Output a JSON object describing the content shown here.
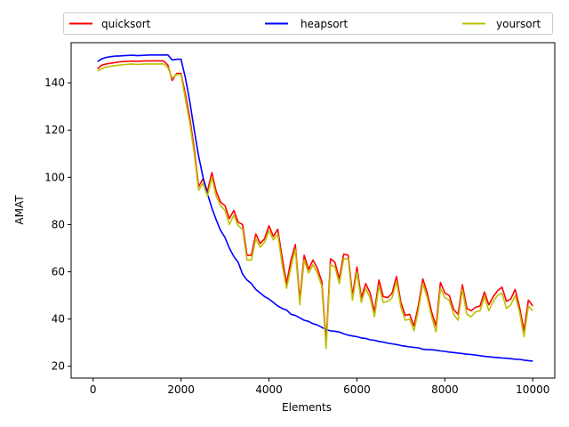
{
  "chart_data": {
    "type": "line",
    "title": "",
    "xlabel": "Elements",
    "ylabel": "AMAT",
    "xlim": [
      -500,
      10500
    ],
    "ylim": [
      15,
      157
    ],
    "xticks": [
      0,
      2000,
      4000,
      6000,
      8000,
      10000
    ],
    "yticks": [
      20,
      40,
      60,
      80,
      100,
      120,
      140
    ],
    "legend_position": "top",
    "legend_columns": 3,
    "grid": false,
    "series": [
      {
        "name": "quicksort",
        "color": "#ff0000",
        "points": [
          [
            100,
            146
          ],
          [
            200,
            147.5
          ],
          [
            300,
            148
          ],
          [
            400,
            148.3
          ],
          [
            500,
            148.6
          ],
          [
            600,
            148.9
          ],
          [
            700,
            149
          ],
          [
            800,
            149.1
          ],
          [
            900,
            149.2
          ],
          [
            1000,
            149.1
          ],
          [
            1100,
            149.2
          ],
          [
            1200,
            149.3
          ],
          [
            1300,
            149.3
          ],
          [
            1400,
            149.3
          ],
          [
            1500,
            149.3
          ],
          [
            1600,
            149.3
          ],
          [
            1700,
            147.5
          ],
          [
            1800,
            141
          ],
          [
            1900,
            144
          ],
          [
            2000,
            144
          ],
          [
            2100,
            135
          ],
          [
            2200,
            125
          ],
          [
            2300,
            112
          ],
          [
            2400,
            96
          ],
          [
            2500,
            99.5
          ],
          [
            2600,
            94
          ],
          [
            2700,
            102
          ],
          [
            2800,
            94
          ],
          [
            2900,
            89.5
          ],
          [
            3000,
            88
          ],
          [
            3100,
            82.5
          ],
          [
            3200,
            86
          ],
          [
            3300,
            81
          ],
          [
            3400,
            80
          ],
          [
            3500,
            67
          ],
          [
            3600,
            67
          ],
          [
            3700,
            76
          ],
          [
            3800,
            72
          ],
          [
            3900,
            74
          ],
          [
            4000,
            79.5
          ],
          [
            4100,
            75
          ],
          [
            4200,
            78
          ],
          [
            4300,
            66
          ],
          [
            4400,
            55
          ],
          [
            4500,
            65
          ],
          [
            4600,
            71.5
          ],
          [
            4700,
            48
          ],
          [
            4800,
            67
          ],
          [
            4900,
            61
          ],
          [
            5000,
            65
          ],
          [
            5100,
            61.5
          ],
          [
            5200,
            56
          ],
          [
            5300,
            30
          ],
          [
            5400,
            65.5
          ],
          [
            5500,
            64
          ],
          [
            5600,
            57
          ],
          [
            5700,
            67.5
          ],
          [
            5800,
            67
          ],
          [
            5900,
            50
          ],
          [
            6000,
            62
          ],
          [
            6100,
            49
          ],
          [
            6200,
            55
          ],
          [
            6300,
            51
          ],
          [
            6400,
            43
          ],
          [
            6500,
            56.5
          ],
          [
            6600,
            49.5
          ],
          [
            6700,
            49
          ],
          [
            6800,
            51
          ],
          [
            6900,
            58
          ],
          [
            7000,
            47
          ],
          [
            7100,
            41.5
          ],
          [
            7200,
            42
          ],
          [
            7300,
            37
          ],
          [
            7400,
            46
          ],
          [
            7500,
            57
          ],
          [
            7600,
            51
          ],
          [
            7700,
            43
          ],
          [
            7800,
            37
          ],
          [
            7900,
            55.5
          ],
          [
            8000,
            51
          ],
          [
            8100,
            50
          ],
          [
            8200,
            44
          ],
          [
            8300,
            42
          ],
          [
            8400,
            54.5
          ],
          [
            8500,
            44.5
          ],
          [
            8600,
            43.5
          ],
          [
            8700,
            45
          ],
          [
            8800,
            45.5
          ],
          [
            8900,
            51.5
          ],
          [
            9000,
            46
          ],
          [
            9100,
            49.5
          ],
          [
            9200,
            52
          ],
          [
            9300,
            53.5
          ],
          [
            9400,
            47.5
          ],
          [
            9500,
            48.5
          ],
          [
            9600,
            52.5
          ],
          [
            9700,
            45
          ],
          [
            9800,
            35
          ],
          [
            9900,
            48
          ],
          [
            10000,
            45.5
          ]
        ]
      },
      {
        "name": "heapsort",
        "color": "#0000ff",
        "points": [
          [
            100,
            149
          ],
          [
            200,
            150.2
          ],
          [
            300,
            150.8
          ],
          [
            400,
            151.1
          ],
          [
            500,
            151.3
          ],
          [
            600,
            151.4
          ],
          [
            700,
            151.5
          ],
          [
            800,
            151.6
          ],
          [
            900,
            151.7
          ],
          [
            1000,
            151.5
          ],
          [
            1100,
            151.6
          ],
          [
            1200,
            151.7
          ],
          [
            1300,
            151.8
          ],
          [
            1400,
            151.8
          ],
          [
            1500,
            151.8
          ],
          [
            1600,
            151.8
          ],
          [
            1700,
            151.8
          ],
          [
            1800,
            149.7
          ],
          [
            1900,
            150
          ],
          [
            2000,
            150
          ],
          [
            2100,
            142
          ],
          [
            2200,
            132
          ],
          [
            2300,
            120
          ],
          [
            2400,
            109
          ],
          [
            2500,
            100
          ],
          [
            2600,
            93
          ],
          [
            2700,
            87
          ],
          [
            2800,
            82
          ],
          [
            2900,
            77.5
          ],
          [
            3000,
            74.5
          ],
          [
            3100,
            70
          ],
          [
            3200,
            66.5
          ],
          [
            3300,
            64
          ],
          [
            3400,
            59
          ],
          [
            3500,
            56.5
          ],
          [
            3600,
            55
          ],
          [
            3700,
            52.5
          ],
          [
            3800,
            51
          ],
          [
            3900,
            49.5
          ],
          [
            4000,
            48.5
          ],
          [
            4100,
            47
          ],
          [
            4200,
            45.5
          ],
          [
            4300,
            44.5
          ],
          [
            4400,
            43.8
          ],
          [
            4500,
            42
          ],
          [
            4600,
            41.5
          ],
          [
            4700,
            40.5
          ],
          [
            4800,
            39.5
          ],
          [
            4900,
            39
          ],
          [
            5000,
            38
          ],
          [
            5100,
            37.5
          ],
          [
            5200,
            36.5
          ],
          [
            5300,
            35.5
          ],
          [
            5400,
            35
          ],
          [
            5500,
            34.8
          ],
          [
            5600,
            34.5
          ],
          [
            5700,
            33.8
          ],
          [
            5800,
            33.2
          ],
          [
            5900,
            32.8
          ],
          [
            6000,
            32.5
          ],
          [
            6100,
            32
          ],
          [
            6200,
            31.8
          ],
          [
            6300,
            31.2
          ],
          [
            6400,
            31
          ],
          [
            6500,
            30.5
          ],
          [
            6600,
            30.2
          ],
          [
            6700,
            29.8
          ],
          [
            6800,
            29.5
          ],
          [
            6900,
            29.2
          ],
          [
            7000,
            28.8
          ],
          [
            7100,
            28.5
          ],
          [
            7200,
            28.2
          ],
          [
            7300,
            28
          ],
          [
            7400,
            27.8
          ],
          [
            7500,
            27.2
          ],
          [
            7600,
            27
          ],
          [
            7700,
            27
          ],
          [
            7800,
            26.8
          ],
          [
            7900,
            26.5
          ],
          [
            8000,
            26.3
          ],
          [
            8100,
            26
          ],
          [
            8200,
            25.8
          ],
          [
            8300,
            25.6
          ],
          [
            8400,
            25.4
          ],
          [
            8500,
            25.1
          ],
          [
            8600,
            25
          ],
          [
            8700,
            24.7
          ],
          [
            8800,
            24.5
          ],
          [
            8900,
            24.2
          ],
          [
            9000,
            24
          ],
          [
            9100,
            23.8
          ],
          [
            9200,
            23.7
          ],
          [
            9300,
            23.5
          ],
          [
            9400,
            23.4
          ],
          [
            9500,
            23.2
          ],
          [
            9600,
            23
          ],
          [
            9700,
            22.9
          ],
          [
            9800,
            22.6
          ],
          [
            9900,
            22.4
          ],
          [
            10000,
            22.2
          ]
        ]
      },
      {
        "name": "yoursort",
        "color": "#bfbf00",
        "points": [
          [
            100,
            145
          ],
          [
            200,
            146
          ],
          [
            300,
            146.7
          ],
          [
            400,
            147
          ],
          [
            500,
            147.3
          ],
          [
            600,
            147.5
          ],
          [
            700,
            147.7
          ],
          [
            800,
            147.9
          ],
          [
            900,
            148
          ],
          [
            1000,
            147.8
          ],
          [
            1100,
            147.9
          ],
          [
            1200,
            148
          ],
          [
            1300,
            148
          ],
          [
            1400,
            148
          ],
          [
            1500,
            148
          ],
          [
            1600,
            148
          ],
          [
            1700,
            146.5
          ],
          [
            1800,
            142
          ],
          [
            1900,
            143.5
          ],
          [
            2000,
            143.5
          ],
          [
            2100,
            133
          ],
          [
            2200,
            123
          ],
          [
            2300,
            110
          ],
          [
            2400,
            94.5
          ],
          [
            2500,
            97.5
          ],
          [
            2600,
            92
          ],
          [
            2700,
            100
          ],
          [
            2800,
            92
          ],
          [
            2900,
            88
          ],
          [
            3000,
            86
          ],
          [
            3100,
            80
          ],
          [
            3200,
            84
          ],
          [
            3300,
            79.5
          ],
          [
            3400,
            78
          ],
          [
            3500,
            65
          ],
          [
            3600,
            65
          ],
          [
            3700,
            74
          ],
          [
            3800,
            70.5
          ],
          [
            3900,
            72.5
          ],
          [
            4000,
            77.5
          ],
          [
            4100,
            73.5
          ],
          [
            4200,
            76
          ],
          [
            4300,
            63
          ],
          [
            4400,
            53
          ],
          [
            4500,
            62
          ],
          [
            4600,
            69.5
          ],
          [
            4700,
            46
          ],
          [
            4800,
            65
          ],
          [
            4900,
            59.5
          ],
          [
            5000,
            63
          ],
          [
            5100,
            59.5
          ],
          [
            5200,
            54
          ],
          [
            5300,
            27.5
          ],
          [
            5400,
            63
          ],
          [
            5500,
            62
          ],
          [
            5600,
            55
          ],
          [
            5700,
            65.5
          ],
          [
            5800,
            65.5
          ],
          [
            5900,
            48
          ],
          [
            6000,
            60
          ],
          [
            6100,
            47
          ],
          [
            6200,
            53
          ],
          [
            6300,
            49
          ],
          [
            6400,
            41
          ],
          [
            6500,
            54
          ],
          [
            6600,
            47
          ],
          [
            6700,
            47.5
          ],
          [
            6800,
            49
          ],
          [
            6900,
            56
          ],
          [
            7000,
            45
          ],
          [
            7100,
            39.5
          ],
          [
            7200,
            40
          ],
          [
            7300,
            35
          ],
          [
            7400,
            44
          ],
          [
            7500,
            55
          ],
          [
            7600,
            49
          ],
          [
            7700,
            41
          ],
          [
            7800,
            34.5
          ],
          [
            7900,
            53
          ],
          [
            8000,
            49
          ],
          [
            8100,
            48
          ],
          [
            8200,
            42
          ],
          [
            8300,
            39.5
          ],
          [
            8400,
            52.5
          ],
          [
            8500,
            42
          ],
          [
            8600,
            41
          ],
          [
            8700,
            43
          ],
          [
            8800,
            43.5
          ],
          [
            8900,
            49.5
          ],
          [
            9000,
            43.5
          ],
          [
            9100,
            47.5
          ],
          [
            9200,
            50
          ],
          [
            9300,
            51
          ],
          [
            9400,
            44.5
          ],
          [
            9500,
            46
          ],
          [
            9600,
            50
          ],
          [
            9700,
            43
          ],
          [
            9800,
            32.5
          ],
          [
            9900,
            45.5
          ],
          [
            10000,
            43.5
          ]
        ]
      }
    ]
  }
}
